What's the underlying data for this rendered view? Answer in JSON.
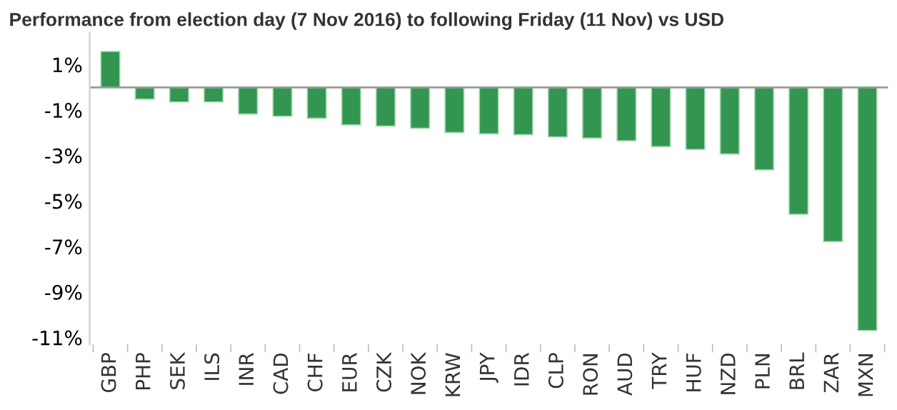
{
  "chart_data": {
    "type": "bar",
    "title": "Performance from election day (7 Nov 2016) to following Friday (11 Nov) vs USD",
    "categories": [
      "GBP",
      "PHP",
      "SEK",
      "ILS",
      "INR",
      "CAD",
      "CHF",
      "EUR",
      "CZK",
      "NOK",
      "KRW",
      "JPY",
      "IDR",
      "CLP",
      "RON",
      "AUD",
      "TRY",
      "HUF",
      "NZD",
      "PLN",
      "BRL",
      "ZAR",
      "MXN"
    ],
    "values": [
      1.58,
      -0.52,
      -0.64,
      -0.64,
      -1.17,
      -1.27,
      -1.36,
      -1.65,
      -1.7,
      -1.8,
      -1.99,
      -2.04,
      -2.08,
      -2.18,
      -2.23,
      -2.35,
      -2.61,
      -2.73,
      -2.93,
      -3.63,
      -5.58,
      -6.78,
      -10.69
    ],
    "color": "#339650",
    "yticks": [
      {
        "value": 1,
        "label": "1%"
      },
      {
        "value": -1,
        "label": "-1%"
      },
      {
        "value": -3,
        "label": "-3%"
      },
      {
        "value": -5,
        "label": "-5%"
      },
      {
        "value": -7,
        "label": "-7%"
      },
      {
        "value": -9,
        "label": "-9%"
      },
      {
        "value": -11,
        "label": "-11%"
      }
    ],
    "ylim": [
      -11.3,
      2.4
    ],
    "grid": false
  }
}
